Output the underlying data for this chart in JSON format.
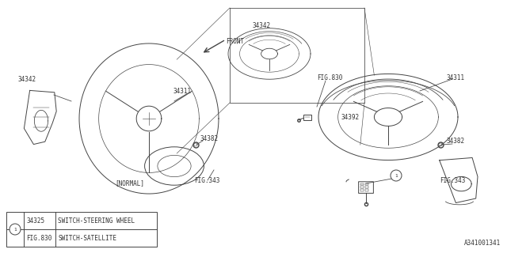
{
  "background": "#ffffff",
  "line_color": "#444444",
  "text_color": "#333333",
  "diagram_id": "A341001341",
  "lw": 0.7,
  "legend_items": [
    {
      "part_num": "34325",
      "description": "SWITCH-STEERING WHEEL"
    },
    {
      "part_num": "FIG.830",
      "description": "SWITCH-SATELLITE"
    }
  ]
}
